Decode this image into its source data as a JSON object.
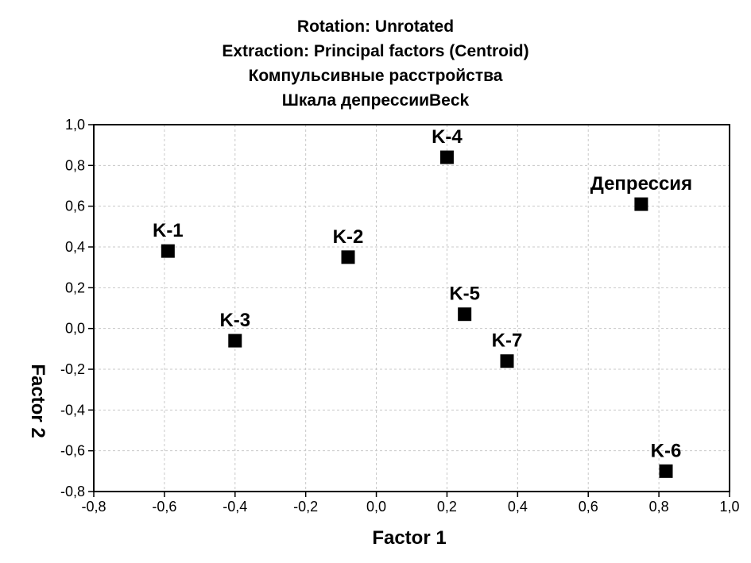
{
  "chart_data": {
    "type": "scatter",
    "title_lines": [
      "Rotation: Unrotated",
      "Extraction: Principal factors (Centroid)",
      "Компульсивные расстройства",
      "Шкала депрессииBeck"
    ],
    "xlabel": "Factor 1",
    "ylabel": "Factor 2",
    "xlim": [
      -0.8,
      1.0
    ],
    "ylim": [
      -0.8,
      1.0
    ],
    "xticks": [
      "-0,8",
      "-0,6",
      "-0,4",
      "-0,2",
      "0,0",
      "0,2",
      "0,4",
      "0,6",
      "0,8",
      "1,0"
    ],
    "yticks": [
      "-0,8",
      "-0,6",
      "-0,4",
      "-0,2",
      "0,0",
      "0,2",
      "0,4",
      "0,6",
      "0,8",
      "1,0"
    ],
    "grid": true,
    "marker": "square",
    "marker_color": "#000000",
    "points": [
      {
        "label": "K-1",
        "x": -0.59,
        "y": 0.38
      },
      {
        "label": "K-2",
        "x": -0.08,
        "y": 0.35
      },
      {
        "label": "K-3",
        "x": -0.4,
        "y": -0.06
      },
      {
        "label": "K-4",
        "x": 0.2,
        "y": 0.84
      },
      {
        "label": "K-5",
        "x": 0.25,
        "y": 0.07
      },
      {
        "label": "K-6",
        "x": 0.82,
        "y": -0.7
      },
      {
        "label": "K-7",
        "x": 0.37,
        "y": -0.16
      },
      {
        "label": "Депрессия",
        "x": 0.75,
        "y": 0.61
      }
    ]
  }
}
